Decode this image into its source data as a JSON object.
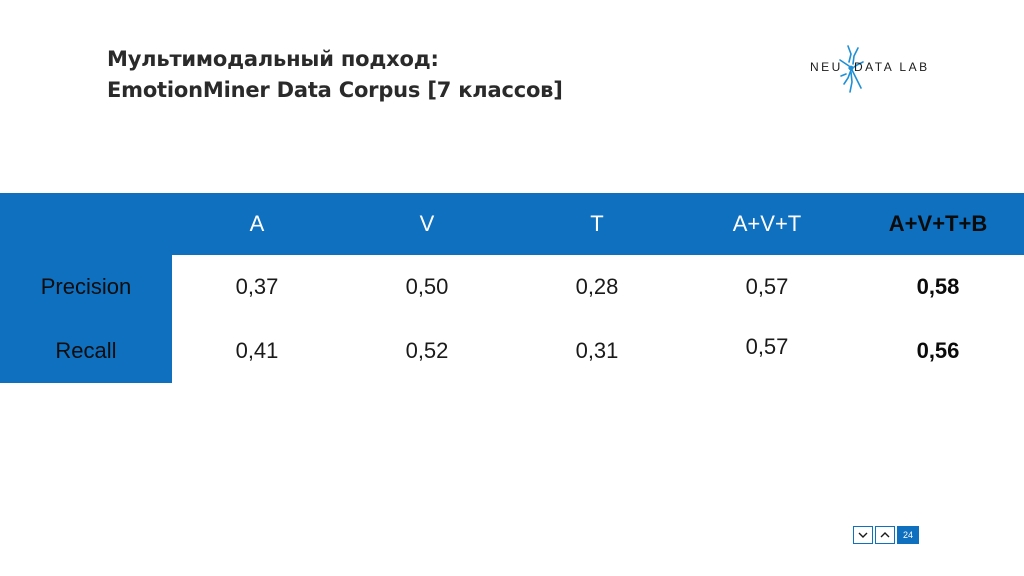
{
  "slide": {
    "title_line1": "Мультимодальный подход:",
    "title_line2": "EmotionMiner Data Corpus [7 классов]",
    "page_number": "24"
  },
  "logo": {
    "text_left": "NEU",
    "text_right": "DATA LAB",
    "accent_color": "#1f8fd6"
  },
  "table": {
    "columns": [
      "A",
      "V",
      "T",
      "A+V+T",
      "A+V+T+B"
    ],
    "rows": [
      {
        "label": "Precision",
        "values": [
          "0,37",
          "0,50",
          "0,28",
          "0,57",
          "0,58"
        ]
      },
      {
        "label": "Recall",
        "values": [
          "0,41",
          "0,52",
          "0,31",
          "0,57",
          "0,56"
        ]
      }
    ],
    "header_color": "#0e70bf"
  },
  "nav": {
    "prev_icon": "chevron-down-icon",
    "next_icon": "chevron-up-icon"
  }
}
